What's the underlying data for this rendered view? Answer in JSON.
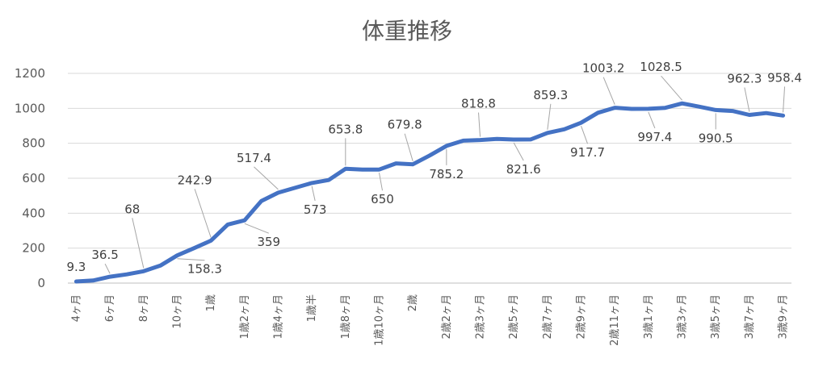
{
  "chart_data": {
    "type": "line",
    "title": "体重推移",
    "xlabel": "",
    "ylabel": "",
    "ylim": [
      0,
      1200
    ],
    "yticks": [
      0,
      200,
      400,
      600,
      800,
      1000,
      1200
    ],
    "grid": true,
    "legend": "none",
    "line_color": "#4472C4",
    "series": [
      {
        "values": [
          9.3,
          15,
          36.5,
          50,
          68,
          100,
          158.3,
          200,
          242.9,
          335,
          359,
          470,
          517.4,
          545,
          573,
          590,
          653.8,
          650,
          650,
          685,
          679.8,
          730,
          785.2,
          815,
          818.8,
          825,
          821.6,
          822,
          859.3,
          880,
          917.7,
          975,
          1003.2,
          997,
          997.4,
          1003,
          1028.5,
          1010,
          990.5,
          985,
          962.3,
          973,
          958.4
        ]
      }
    ],
    "x_tick_labels": [
      "4ヶ月",
      "6ヶ月",
      "8ヶ月",
      "10ヶ月",
      "1歳",
      "1歳2ヶ月",
      "1歳4ヶ月",
      "1歳半",
      "1歳8ヶ月",
      "1歳10ヶ月",
      "2歳",
      "2歳2ヶ月",
      "2歳3ヶ月",
      "2歳5ヶ月",
      "2歳7ヶ月",
      "2歳9ヶ月",
      "2歳11ヶ月",
      "3歳1ヶ月",
      "3歳3ヶ月",
      "3歳5ヶ月",
      "3歳7ヶ月",
      "3歳9ヶ月"
    ],
    "data_labels": [
      "9.3",
      "36.5",
      "68",
      "158.3",
      "242.9",
      "359",
      "517.4",
      "573",
      "653.8",
      "650",
      "679.8",
      "785.2",
      "818.8",
      "821.6",
      "859.3",
      "917.7",
      "1003.2",
      "997.4",
      "1028.5",
      "990.5",
      "962.3",
      "958.4"
    ]
  }
}
